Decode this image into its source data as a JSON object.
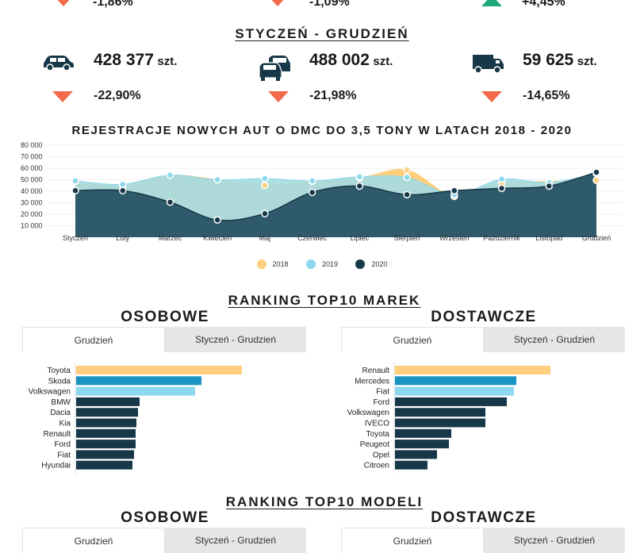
{
  "colors": {
    "orange": "#ffcf7d",
    "lightblue": "#8dd8ee",
    "midblue": "#1a94c0",
    "dark": "#173848",
    "red": "#f26b4c",
    "green": "#1fa77c"
  },
  "top_row": [
    {
      "value": "-1,86%",
      "trend": "down"
    },
    {
      "value": "-1,09%",
      "trend": "down"
    },
    {
      "value": "+4,45%",
      "trend": "up"
    }
  ],
  "section1": {
    "title": "STYCZEŃ - GRUDZIEŃ"
  },
  "stats": [
    {
      "icon": "car-icon",
      "number": "428 377",
      "unit": "szt.",
      "pct": "-22,90%"
    },
    {
      "icon": "cars-icon",
      "number": "488 002",
      "unit": "szt.",
      "pct": "-21,98%"
    },
    {
      "icon": "van-icon",
      "number": "59 625",
      "unit": "szt.",
      "pct": "-14,65%"
    }
  ],
  "chart_data": [
    {
      "type": "area",
      "title": "REJESTRACJE NOWYCH AUT O DMC DO 3,5 TONY W LATACH 2018 - 2020",
      "categories": [
        "Styczeń",
        "Luty",
        "Marzec",
        "Kwiecień",
        "Maj",
        "Czerwiec",
        "Lipiec",
        "Sierpień",
        "Wrzesień",
        "Październik",
        "Listopad",
        "Grudzień"
      ],
      "y_ticks": [
        "80 000",
        "70 000",
        "60 000",
        "50 000",
        "40 000",
        "30 000",
        "20 000",
        "10 000"
      ],
      "ylim": [
        0,
        80000
      ],
      "series": [
        {
          "name": "2018",
          "color": "#ffcf7d",
          "values": [
            48500,
            45000,
            54000,
            50000,
            45000,
            48500,
            51500,
            58500,
            35500,
            46500,
            48500,
            49500
          ]
        },
        {
          "name": "2019",
          "color": "#8dd8ee",
          "values": [
            49000,
            46000,
            54000,
            50000,
            51000,
            49000,
            52500,
            52000,
            37000,
            50500,
            47500,
            55500
          ]
        },
        {
          "name": "2020",
          "color": "#173848",
          "values": [
            40500,
            40500,
            30500,
            15000,
            20500,
            39000,
            44500,
            37000,
            40500,
            42500,
            44500,
            56500
          ]
        }
      ]
    },
    {
      "type": "bar",
      "orientation": "horizontal",
      "categories": [
        "Toyota",
        "Skoda",
        "Volkswagen",
        "BMW",
        "Dacia",
        "Kia",
        "Renault",
        "Ford",
        "Fiat",
        "Hyundai"
      ],
      "values": [
        209,
        158,
        150,
        80,
        78,
        76,
        75,
        75,
        73,
        71
      ],
      "colors": [
        "#ffcf7d",
        "#1a94c0",
        "#8dd8ee",
        "#173848",
        "#173848",
        "#173848",
        "#173848",
        "#173848",
        "#173848",
        "#173848"
      ]
    },
    {
      "type": "bar",
      "orientation": "horizontal",
      "categories": [
        "Renault",
        "Mercedes",
        "Fiat",
        "Ford",
        "Volkswagen",
        "IVECO",
        "Toyota",
        "Peugeot",
        "Opel",
        "Citroen"
      ],
      "values": [
        196,
        153,
        150,
        141,
        114,
        114,
        71,
        68,
        53,
        41
      ],
      "colors": [
        "#ffcf7d",
        "#1a94c0",
        "#8dd8ee",
        "#173848",
        "#173848",
        "#173848",
        "#173848",
        "#173848",
        "#173848",
        "#173848"
      ]
    }
  ],
  "ranking_brands": {
    "title": "RANKING TOP10 MAREK",
    "left_head": "OSOBOWE",
    "right_head": "DOSTAWCZE",
    "tabs": [
      "Grudzień",
      "Styczeń - Grudzień"
    ]
  },
  "ranking_models": {
    "title": "RANKING TOP10 MODELI",
    "left_head": "OSOBOWE",
    "right_head": "DOSTAWCZE",
    "tabs": [
      "Grudzień",
      "Styczeń - Grudzień"
    ]
  }
}
